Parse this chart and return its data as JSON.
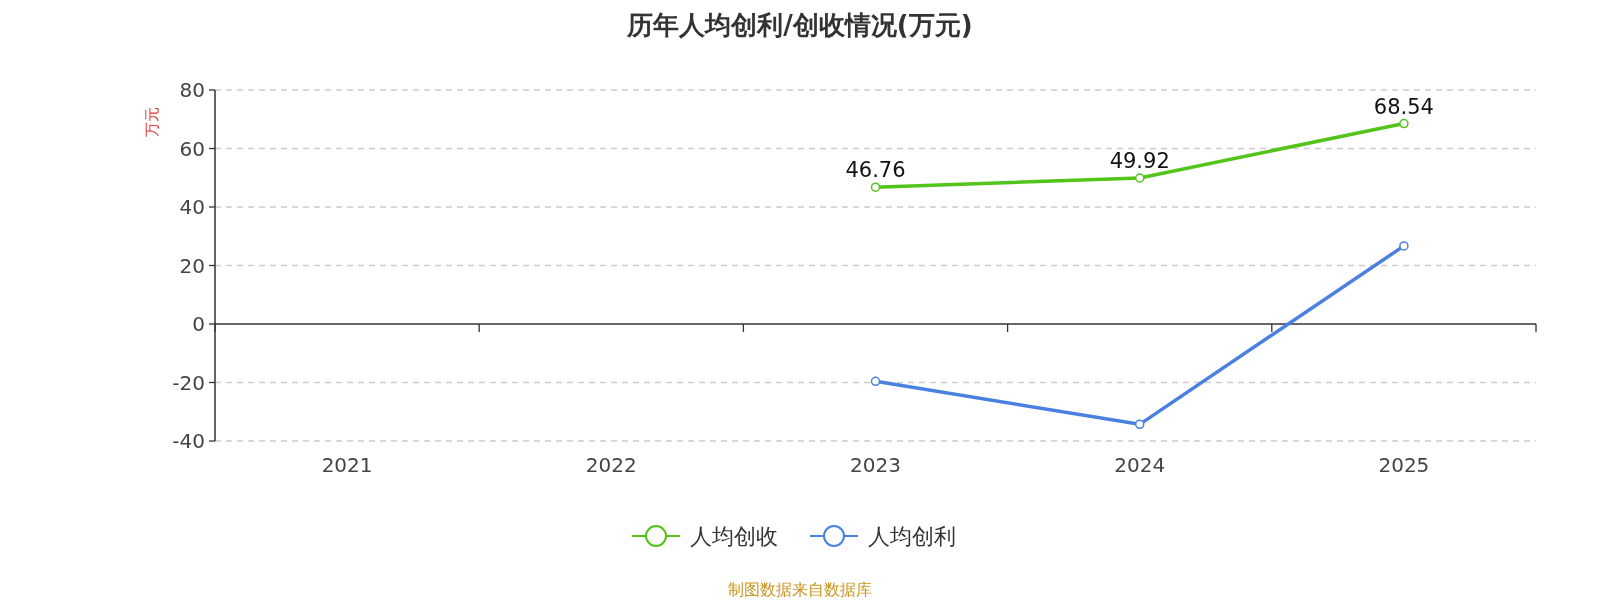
{
  "chart_data": {
    "type": "line",
    "title": "历年人均创利/创收情况(万元)",
    "ylabel": "万元",
    "categories": [
      "2021",
      "2022",
      "2023",
      "2024",
      "2025"
    ],
    "series": [
      {
        "name": "人均创收",
        "color": "#52c41a",
        "values": [
          null,
          null,
          46.76,
          49.92,
          68.54
        ],
        "value_labels": [
          null,
          null,
          "46.76",
          "49.92",
          "68.54"
        ]
      },
      {
        "name": "人均创利",
        "color": "#4a80e0",
        "values": [
          null,
          null,
          -19.6,
          -34.3,
          26.7
        ]
      }
    ],
    "ylim": [
      -40,
      80
    ],
    "yticks": [
      -40,
      -20,
      0,
      20,
      40,
      60,
      80
    ],
    "grid": "y",
    "legend": "bottom",
    "marker": "circle",
    "line_style": "solid",
    "annotations": [
      "制图数据来自数据库"
    ]
  }
}
